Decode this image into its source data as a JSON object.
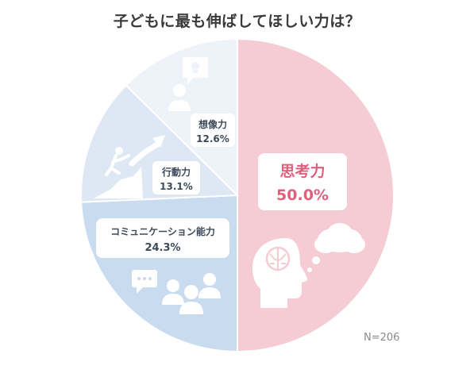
{
  "chart_data": {
    "type": "pie",
    "title": "子どもに最も伸ばしてほしい力は？",
    "slices": [
      {
        "label": "思考力",
        "value": 50.0,
        "value_label": "50.0%",
        "color": "#f5ccd4",
        "label_color": "#e05f7b",
        "icon": "head-brain-thought-icon"
      },
      {
        "label": "コミュニケーション能力",
        "value": 24.3,
        "value_label": "24.3%",
        "color": "#c9dbef",
        "label_color": "#3d4a5c",
        "icon": "people-speech-bubble-icon"
      },
      {
        "label": "行動力",
        "value": 13.1,
        "value_label": "13.1%",
        "color": "#dde8f4",
        "label_color": "#3d4a5c",
        "icon": "climber-arrow-icon"
      },
      {
        "label": "想像力",
        "value": 12.6,
        "value_label": "12.6%",
        "color": "#eef3fa",
        "label_color": "#3d4a5c",
        "icon": "person-lightbulb-icon"
      }
    ],
    "note": "N=206",
    "legend": "none"
  }
}
